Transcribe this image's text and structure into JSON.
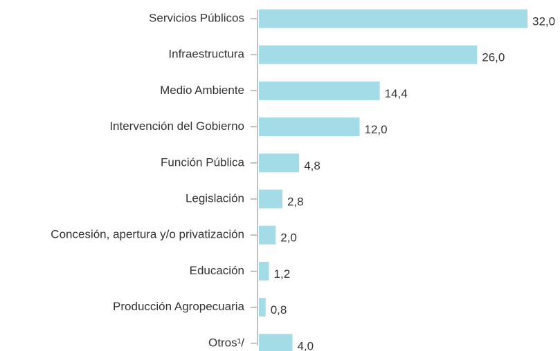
{
  "chart_data": {
    "type": "barh",
    "categories": [
      "Servicios Públicos",
      "Infraestructura",
      "Medio Ambiente",
      "Intervención del Gobierno",
      "Función Pública",
      "Legislación",
      "Concesión, apertura y/o privatización",
      "Educación",
      "Producción Agropecuaria",
      "Otros¹/"
    ],
    "values": [
      32.0,
      26.0,
      14.4,
      12.0,
      4.8,
      2.8,
      2.0,
      1.2,
      0.8,
      4.0
    ],
    "value_labels": [
      "32,0",
      "26,0",
      "14,4",
      "12,0",
      "4,8",
      "2,8",
      "2,0",
      "1,2",
      "0,8",
      "4,0"
    ],
    "color": "#a3dbe6"
  }
}
